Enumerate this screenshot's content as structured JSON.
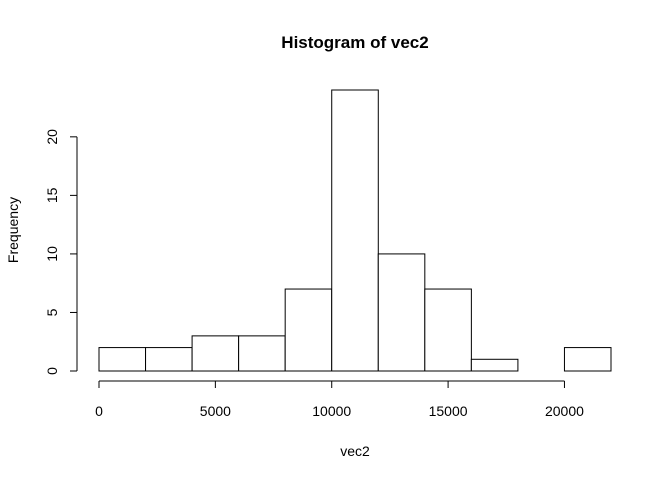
{
  "chart_data": {
    "type": "bar",
    "title": "Histogram of vec2",
    "xlabel": "vec2",
    "ylabel": "Frequency",
    "bins": [
      {
        "start": 0,
        "end": 2000,
        "value": 2
      },
      {
        "start": 2000,
        "end": 4000,
        "value": 2
      },
      {
        "start": 4000,
        "end": 6000,
        "value": 3
      },
      {
        "start": 6000,
        "end": 8000,
        "value": 3
      },
      {
        "start": 8000,
        "end": 10000,
        "value": 7
      },
      {
        "start": 10000,
        "end": 12000,
        "value": 24
      },
      {
        "start": 12000,
        "end": 14000,
        "value": 10
      },
      {
        "start": 14000,
        "end": 16000,
        "value": 7
      },
      {
        "start": 16000,
        "end": 18000,
        "value": 1
      },
      {
        "start": 18000,
        "end": 20000,
        "value": 0
      },
      {
        "start": 20000,
        "end": 22000,
        "value": 2
      }
    ],
    "xticks": [
      0,
      5000,
      10000,
      15000,
      20000
    ],
    "xtick_labels": [
      "0",
      "5000",
      "10000",
      "15000",
      "20000"
    ],
    "yticks": [
      0,
      5,
      10,
      15,
      20
    ],
    "ytick_labels": [
      "0",
      "5",
      "10",
      "15",
      "20"
    ],
    "xlim": [
      0,
      22000
    ],
    "ylim": [
      0,
      24
    ],
    "grid": false,
    "colors": {
      "bar_fill": "#ffffff",
      "bar_stroke": "#000000",
      "background": "#ffffff"
    }
  }
}
